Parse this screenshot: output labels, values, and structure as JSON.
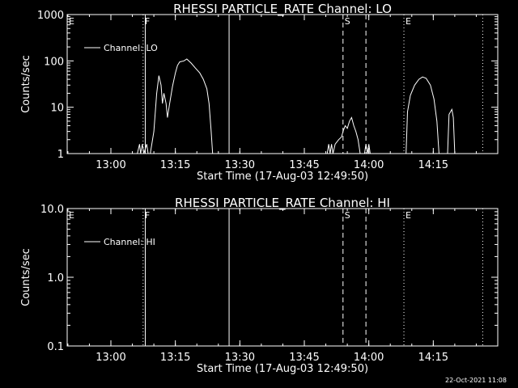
{
  "footer": {
    "date": "22-Oct-2021 11:08"
  },
  "chart_data": [
    {
      "type": "line",
      "title": "RHESSI PARTICLE_RATE Channel: LO",
      "xlabel": "Start Time (17-Aug-03 12:49:50)",
      "ylabel": "Counts/sec",
      "yscale": "log",
      "ylim": [
        1,
        1000
      ],
      "yticks": [
        "1",
        "10",
        "100",
        "1000"
      ],
      "xticks": [
        "13:00",
        "13:15",
        "13:30",
        "13:45",
        "14:00",
        "14:15"
      ],
      "xlim": [
        "12:49:50",
        "14:30:00"
      ],
      "legend": {
        "position": "top-left",
        "label": "Channel: LO"
      },
      "markers": [
        {
          "label": "E",
          "time": "12:49:50",
          "style": "dotted"
        },
        {
          "label": "F",
          "time": "13:07:30",
          "style": "dotted"
        },
        {
          "label": "",
          "time": "13:08:00",
          "style": "solid"
        },
        {
          "label": "",
          "time": "13:27:30",
          "style": "solid"
        },
        {
          "label": "S",
          "time": "13:54:00",
          "style": "dashed"
        },
        {
          "label": "",
          "time": "13:59:20",
          "style": "dashed"
        },
        {
          "label": "E",
          "time": "14:08:10",
          "style": "dotted"
        },
        {
          "label": "",
          "time": "14:26:30",
          "style": "dotted"
        }
      ],
      "segments": [
        {
          "name": "Channel: LO",
          "points": [
            [
              "13:06:10",
              1
            ],
            [
              "13:06:40",
              1.6
            ],
            [
              "13:06:55",
              1
            ],
            [
              "13:07:20",
              1.6
            ],
            [
              "13:07:40",
              1
            ],
            [
              "13:08:20",
              1.6
            ],
            [
              "13:08:40",
              1
            ]
          ]
        },
        {
          "name": "Channel: LO",
          "points": [
            [
              "13:09:10",
              1
            ],
            [
              "13:10:00",
              3
            ],
            [
              "13:10:40",
              20
            ],
            [
              "13:11:10",
              48
            ],
            [
              "13:11:40",
              30
            ],
            [
              "13:12:00",
              12
            ],
            [
              "13:12:20",
              20
            ],
            [
              "13:12:50",
              12
            ],
            [
              "13:13:10",
              6
            ],
            [
              "13:13:40",
              12
            ],
            [
              "13:14:20",
              28
            ],
            [
              "13:15:00",
              55
            ],
            [
              "13:15:30",
              80
            ],
            [
              "13:16:00",
              95
            ],
            [
              "13:17:00",
              100
            ],
            [
              "13:17:40",
              110
            ],
            [
              "13:18:40",
              90
            ],
            [
              "13:19:40",
              70
            ],
            [
              "13:20:40",
              55
            ],
            [
              "13:21:30",
              40
            ],
            [
              "13:22:20",
              25
            ],
            [
              "13:22:50",
              12
            ],
            [
              "13:23:20",
              3
            ],
            [
              "13:23:40",
              1
            ]
          ]
        },
        {
          "name": "Channel: LO",
          "points": [
            [
              "13:50:20",
              1
            ],
            [
              "13:50:40",
              1.6
            ],
            [
              "13:51:00",
              1
            ],
            [
              "13:51:20",
              1.6
            ],
            [
              "13:51:40",
              1
            ],
            [
              "13:52:10",
              1.6
            ],
            [
              "13:53:00",
              2
            ],
            [
              "13:53:40",
              2.3
            ],
            [
              "13:54:00",
              3
            ],
            [
              "13:54:30",
              4
            ],
            [
              "13:55:00",
              3.5
            ],
            [
              "13:55:30",
              5
            ],
            [
              "13:56:00",
              6
            ],
            [
              "13:56:30",
              4
            ],
            [
              "13:57:00",
              3
            ],
            [
              "13:57:30",
              2
            ],
            [
              "13:58:00",
              1
            ]
          ]
        },
        {
          "name": "Channel: LO",
          "points": [
            [
              "13:59:00",
              1
            ],
            [
              "13:59:20",
              1.6
            ],
            [
              "13:59:40",
              1
            ],
            [
              "14:00:00",
              1.6
            ],
            [
              "14:00:20",
              1
            ]
          ]
        },
        {
          "name": "Channel: LO",
          "points": [
            [
              "14:08:40",
              1
            ],
            [
              "14:09:00",
              8
            ],
            [
              "14:09:40",
              18
            ],
            [
              "14:10:40",
              30
            ],
            [
              "14:11:40",
              40
            ],
            [
              "14:12:30",
              45
            ],
            [
              "14:13:20",
              42
            ],
            [
              "14:14:20",
              30
            ],
            [
              "14:15:10",
              15
            ],
            [
              "14:15:50",
              5
            ],
            [
              "14:16:20",
              1
            ]
          ]
        },
        {
          "name": "Channel: LO",
          "points": [
            [
              "14:18:20",
              1
            ],
            [
              "14:18:40",
              7
            ],
            [
              "14:19:20",
              9
            ],
            [
              "14:19:40",
              6
            ],
            [
              "14:20:00",
              1
            ]
          ]
        }
      ]
    },
    {
      "type": "line",
      "title": "RHESSI PARTICLE_RATE Channel: HI",
      "xlabel": "Start Time (17-Aug-03 12:49:50)",
      "ylabel": "Counts/sec",
      "yscale": "log",
      "ylim": [
        0.1,
        10
      ],
      "yticks": [
        "0.1",
        "1.0",
        "10.0"
      ],
      "xticks": [
        "13:00",
        "13:15",
        "13:30",
        "13:45",
        "14:00",
        "14:15"
      ],
      "xlim": [
        "12:49:50",
        "14:30:00"
      ],
      "legend": {
        "position": "top-left",
        "label": "Channel: HI"
      },
      "markers": [
        {
          "label": "E",
          "time": "12:49:50",
          "style": "dotted"
        },
        {
          "label": "F",
          "time": "13:07:30",
          "style": "dotted"
        },
        {
          "label": "",
          "time": "13:08:00",
          "style": "solid"
        },
        {
          "label": "",
          "time": "13:27:30",
          "style": "solid"
        },
        {
          "label": "S",
          "time": "13:54:00",
          "style": "dashed"
        },
        {
          "label": "",
          "time": "13:59:20",
          "style": "dashed"
        },
        {
          "label": "E",
          "time": "14:08:10",
          "style": "dotted"
        },
        {
          "label": "",
          "time": "14:26:30",
          "style": "dotted"
        }
      ],
      "segments": []
    }
  ]
}
